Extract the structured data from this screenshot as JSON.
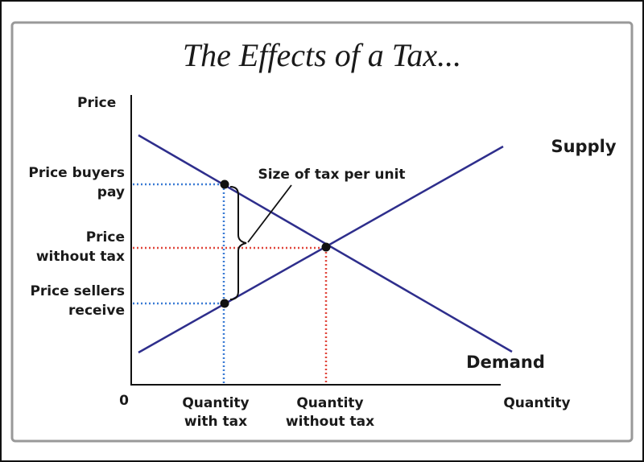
{
  "title": "The Effects of a Tax...",
  "axes": {
    "y_label": "Price",
    "x_label": "Quantity",
    "origin": "0"
  },
  "curves": {
    "supply": "Supply",
    "demand": "Demand"
  },
  "annotation": "Size of tax per unit",
  "price_labels": {
    "buyers": [
      "Price buyers",
      "pay"
    ],
    "without_tax": [
      "Price",
      "without tax"
    ],
    "sellers": [
      "Price sellers",
      "receive"
    ]
  },
  "quantity_labels": {
    "with_tax": [
      "Quantity",
      "with tax"
    ],
    "without_tax": [
      "Quantity",
      "without tax"
    ]
  }
}
